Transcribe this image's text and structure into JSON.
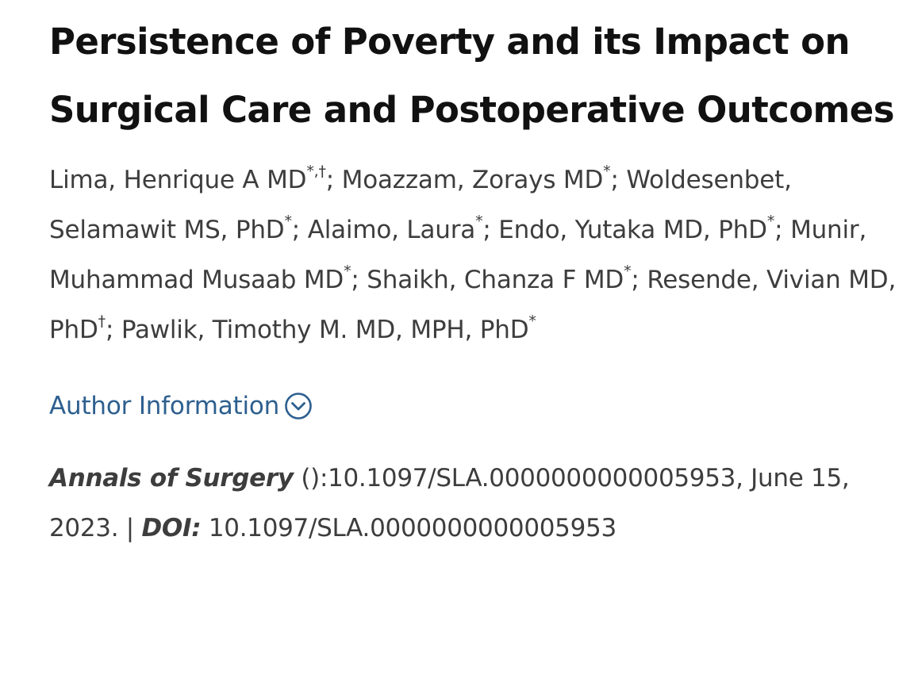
{
  "article": {
    "title": "Persistence of Poverty and its Impact on Surgical Care and Postoperative Outcomes",
    "authors": [
      {
        "name": "Lima, Henrique A MD",
        "marks": "*,†",
        "sep": "; "
      },
      {
        "name": "Moazzam, Zorays MD",
        "marks": "*",
        "sep": "; "
      },
      {
        "name": "Woldesenbet, Selamawit MS, PhD",
        "marks": "*",
        "sep": "; "
      },
      {
        "name": "Alaimo, Laura",
        "marks": "*",
        "sep": "; "
      },
      {
        "name": "Endo, Yutaka MD, PhD",
        "marks": "*",
        "sep": "; "
      },
      {
        "name": "Munir, Muhammad Musaab MD",
        "marks": "*",
        "sep": "; "
      },
      {
        "name": "Shaikh, Chanza F MD",
        "marks": "*",
        "sep": "; "
      },
      {
        "name": "Resende, Vivian MD, PhD",
        "marks": "†",
        "sep": "; "
      },
      {
        "name": "Pawlik, Timothy M. MD, MPH, PhD",
        "marks": "*",
        "sep": ""
      }
    ],
    "author_info_label": "Author Information",
    "author_info_icon": "chevron-down-circle-icon",
    "citation": {
      "journal": "Annals of Surgery",
      "ref": " ():10.1097/SLA.0000000000005953, June 15, 2023. | ",
      "doi_label": "DOI:",
      "doi_value": " 10.1097/SLA.0000000000005953"
    }
  },
  "colors": {
    "title": "#111111",
    "body_text": "#3d3d3d",
    "link": "#2d5f8f"
  }
}
